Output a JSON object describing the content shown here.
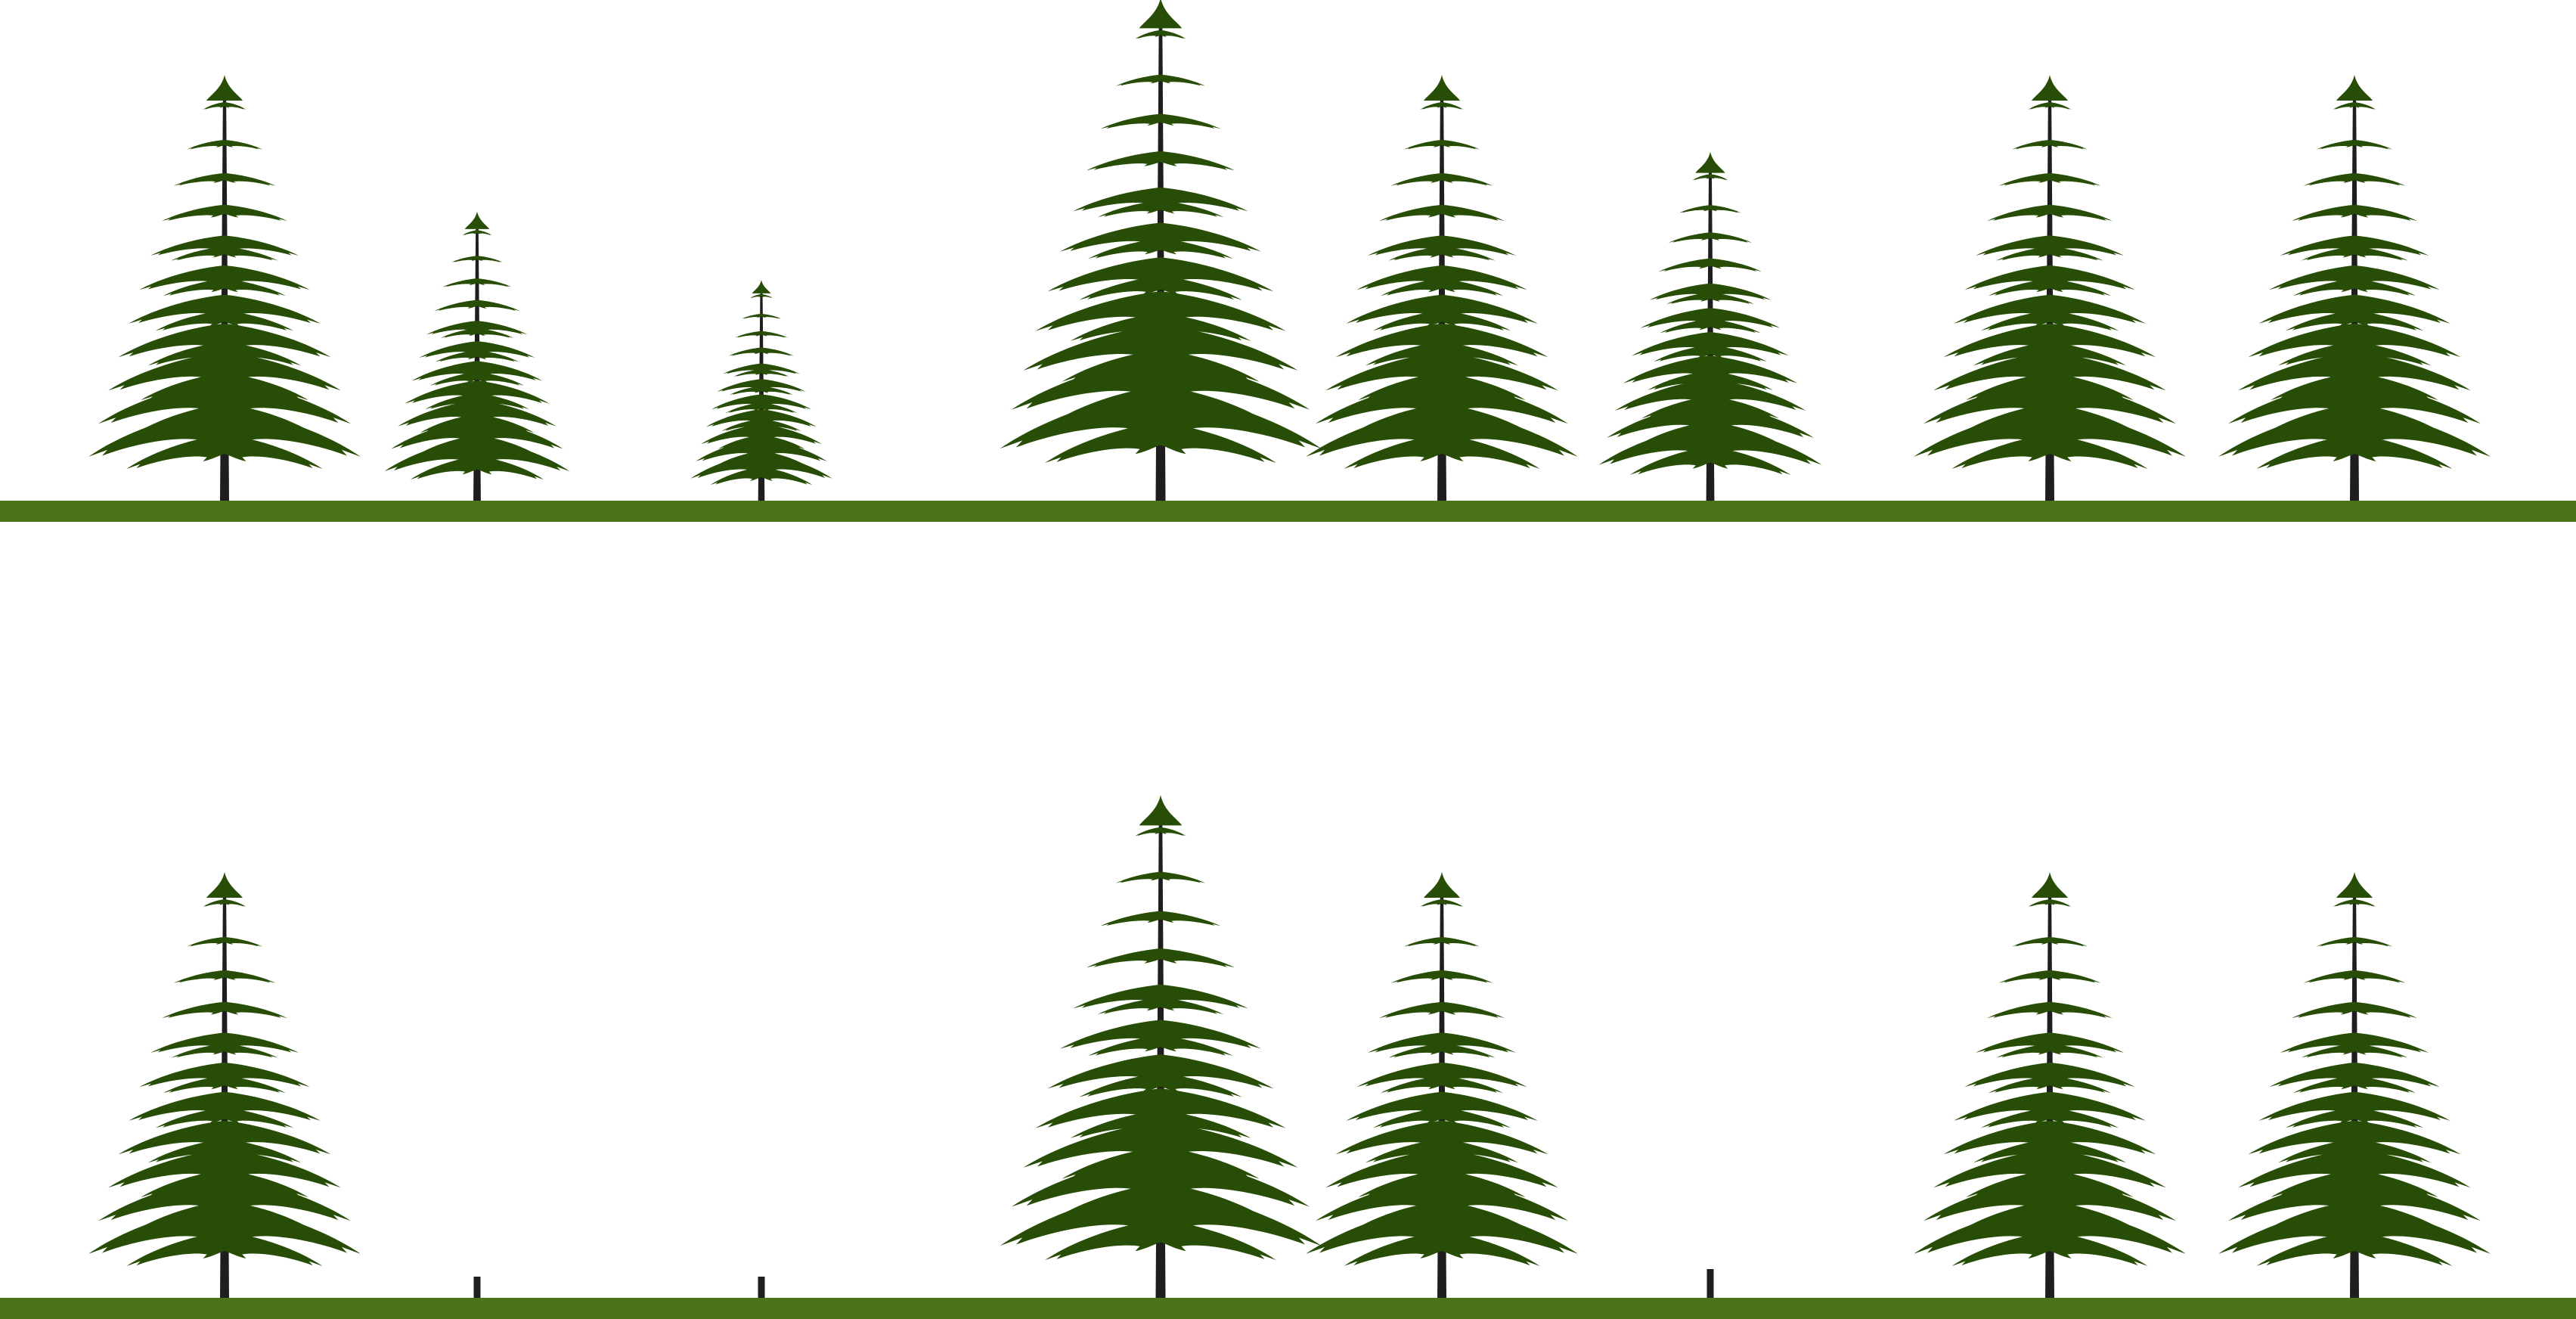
{
  "colors": {
    "background": "#ffffff",
    "ground": "#4a7417",
    "foliage": "#284d06",
    "trunk": "#1e1e1e"
  },
  "icons": {
    "tree": "conifer-tree-icon",
    "stump": "tree-stump-icon"
  },
  "panels": [
    {
      "name": "panel-before",
      "trees": [
        {
          "state": "standing",
          "relative_height": 1.0
        },
        {
          "state": "standing",
          "relative_height": 0.68
        },
        {
          "state": "standing",
          "relative_height": 0.52
        },
        {
          "state": "standing",
          "relative_height": 1.18
        },
        {
          "state": "standing",
          "relative_height": 1.0
        },
        {
          "state": "standing",
          "relative_height": 0.82
        },
        {
          "state": "standing",
          "relative_height": 1.0
        },
        {
          "state": "standing",
          "relative_height": 1.0
        }
      ]
    },
    {
      "name": "panel-after",
      "trees": [
        {
          "state": "standing",
          "relative_height": 1.0
        },
        {
          "state": "stump",
          "relative_height": 0.68
        },
        {
          "state": "stump",
          "relative_height": 0.52
        },
        {
          "state": "standing",
          "relative_height": 1.18
        },
        {
          "state": "standing",
          "relative_height": 1.0
        },
        {
          "state": "stump",
          "relative_height": 0.82
        },
        {
          "state": "standing",
          "relative_height": 1.0
        },
        {
          "state": "standing",
          "relative_height": 1.0
        }
      ]
    }
  ]
}
